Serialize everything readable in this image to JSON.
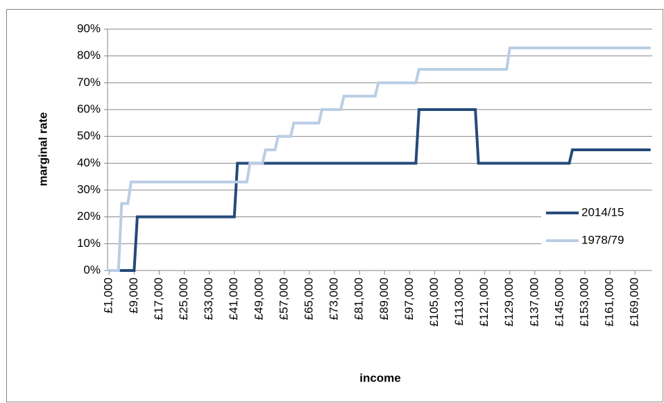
{
  "chart_data": {
    "type": "line",
    "x_label": "income",
    "y_label": "marginal rate",
    "x": [
      1000,
      4000,
      5000,
      7000,
      8000,
      9000,
      10000,
      41000,
      42000,
      45000,
      46000,
      50000,
      51000,
      54000,
      55000,
      59000,
      60000,
      68000,
      69000,
      75000,
      76000,
      86000,
      87000,
      99000,
      100000,
      118000,
      119000,
      128000,
      129000,
      148000,
      149000,
      174000
    ],
    "series": [
      {
        "name": "2014/15",
        "color": "#254a7a",
        "values": [
          0,
          0,
          0,
          0,
          0,
          0,
          20,
          20,
          40,
          40,
          40,
          40,
          40,
          40,
          40,
          40,
          40,
          40,
          40,
          40,
          40,
          40,
          40,
          40,
          60,
          60,
          40,
          40,
          40,
          40,
          45,
          45
        ]
      },
      {
        "name": "1978/79",
        "color": "#b9cde5",
        "values": [
          0,
          0,
          25,
          25,
          33,
          33,
          33,
          33,
          33,
          33,
          40,
          40,
          45,
          45,
          50,
          50,
          55,
          55,
          60,
          60,
          65,
          65,
          70,
          70,
          75,
          75,
          75,
          75,
          83,
          83,
          83,
          83
        ]
      }
    ],
    "xlim": [
      500,
      174500
    ],
    "xticks": [
      {
        "value": 1000,
        "label": "£1,000"
      },
      {
        "value": 9000,
        "label": "£9,000"
      },
      {
        "value": 17000,
        "label": "£17,000"
      },
      {
        "value": 25000,
        "label": "£25,000"
      },
      {
        "value": 33000,
        "label": "£33,000"
      },
      {
        "value": 41000,
        "label": "£41,000"
      },
      {
        "value": 49000,
        "label": "£49,000"
      },
      {
        "value": 57000,
        "label": "£57,000"
      },
      {
        "value": 65000,
        "label": "£65,000"
      },
      {
        "value": 73000,
        "label": "£73,000"
      },
      {
        "value": 81000,
        "label": "£81,000"
      },
      {
        "value": 89000,
        "label": "£89,000"
      },
      {
        "value": 97000,
        "label": "£97,000"
      },
      {
        "value": 105000,
        "label": "£105,000"
      },
      {
        "value": 113000,
        "label": "£113,000"
      },
      {
        "value": 121000,
        "label": "£121,000"
      },
      {
        "value": 129000,
        "label": "£129,000"
      },
      {
        "value": 137000,
        "label": "£137,000"
      },
      {
        "value": 145000,
        "label": "£145,000"
      },
      {
        "value": 153000,
        "label": "£153,000"
      },
      {
        "value": 161000,
        "label": "£161,000"
      },
      {
        "value": 169000,
        "label": "£169,000"
      }
    ],
    "ylim": [
      0,
      90
    ],
    "yticks": [
      {
        "value": 0,
        "label": "0%"
      },
      {
        "value": 10,
        "label": "10%"
      },
      {
        "value": 20,
        "label": "20%"
      },
      {
        "value": 30,
        "label": "30%"
      },
      {
        "value": 40,
        "label": "40%"
      },
      {
        "value": 50,
        "label": "50%"
      },
      {
        "value": 60,
        "label": "60%"
      },
      {
        "value": 70,
        "label": "70%"
      },
      {
        "value": 80,
        "label": "80%"
      },
      {
        "value": 90,
        "label": "90%"
      }
    ],
    "grid": true,
    "legend": "right"
  }
}
